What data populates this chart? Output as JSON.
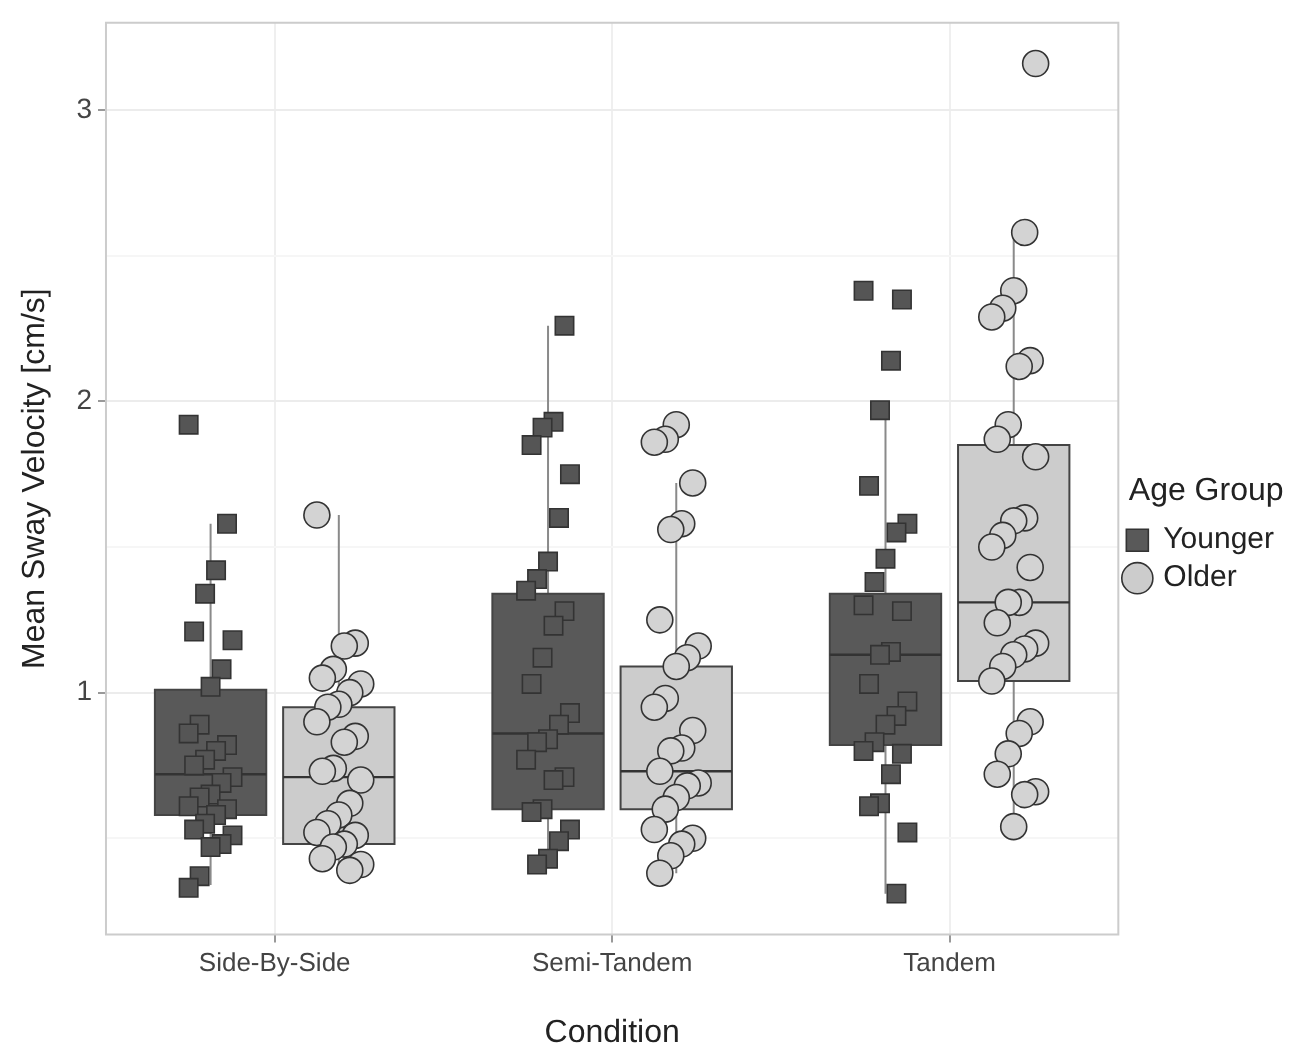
{
  "chart_data": {
    "type": "box",
    "categories": [
      "Side-By-Side",
      "Semi-Tandem",
      "Tandem"
    ],
    "xlabel": "Condition",
    "ylabel": "Mean Sway Velocity [cm/s]",
    "legend_title": "Age Group",
    "legend": "right",
    "grid": true,
    "ylim": [
      0.17,
      3.3
    ],
    "yticks": [
      {
        "value": 0.5,
        "label": null
      },
      1,
      {
        "value": 1.5,
        "label": null
      },
      2,
      {
        "value": 2.5,
        "label": null
      },
      3
    ],
    "series": [
      {
        "name": "Younger",
        "color": "#595959",
        "marker": "square",
        "boxes": [
          {
            "low": 0.34,
            "q1": 0.58,
            "median": 0.72,
            "q3": 1.01,
            "high": 1.58
          },
          {
            "low": 0.41,
            "q1": 0.6,
            "median": 0.86,
            "q3": 1.34,
            "high": 2.26
          },
          {
            "low": 0.31,
            "q1": 0.82,
            "median": 1.13,
            "q3": 1.34,
            "high": 1.97
          }
        ]
      },
      {
        "name": "Older",
        "color": "#cccccc",
        "marker": "circle",
        "boxes": [
          {
            "low": 0.39,
            "q1": 0.48,
            "median": 0.71,
            "q3": 0.95,
            "high": 1.61
          },
          {
            "low": 0.38,
            "q1": 0.6,
            "median": 0.73,
            "q3": 1.09,
            "high": 1.72
          },
          {
            "low": 0.54,
            "q1": 1.04,
            "median": 1.31,
            "q3": 1.85,
            "high": 2.58
          }
        ]
      },
      {
        "type": "scatter",
        "color": "#555555",
        "marker": "square",
        "x": [
          "Side-By-Side",
          "Side-By-Side",
          "Side-By-Side",
          "Side-By-Side",
          "Side-By-Side",
          "Side-By-Side",
          "Side-By-Side",
          "Side-By-Side",
          "Side-By-Side",
          "Side-By-Side",
          "Side-By-Side",
          "Side-By-Side",
          "Side-By-Side",
          "Side-By-Side",
          "Side-By-Side",
          "Side-By-Side",
          "Side-By-Side",
          "Side-By-Side",
          "Side-By-Side",
          "Side-By-Side",
          "Side-By-Side",
          "Side-By-Side",
          "Side-By-Side",
          "Side-By-Side",
          "Side-By-Side",
          "Side-By-Side",
          "Side-By-Side",
          "Side-By-Side",
          "Semi-Tandem",
          "Semi-Tandem",
          "Semi-Tandem",
          "Semi-Tandem",
          "Semi-Tandem",
          "Semi-Tandem",
          "Semi-Tandem",
          "Semi-Tandem",
          "Semi-Tandem",
          "Semi-Tandem",
          "Semi-Tandem",
          "Semi-Tandem",
          "Semi-Tandem",
          "Semi-Tandem",
          "Semi-Tandem",
          "Semi-Tandem",
          "Semi-Tandem",
          "Semi-Tandem",
          "Semi-Tandem",
          "Semi-Tandem",
          "Semi-Tandem",
          "Semi-Tandem",
          "Semi-Tandem",
          "Semi-Tandem",
          "Semi-Tandem",
          "Semi-Tandem",
          "Tandem",
          "Tandem",
          "Tandem",
          "Tandem",
          "Tandem",
          "Tandem",
          "Tandem",
          "Tandem",
          "Tandem",
          "Tandem",
          "Tandem",
          "Tandem",
          "Tandem",
          "Tandem",
          "Tandem",
          "Tandem",
          "Tandem",
          "Tandem",
          "Tandem",
          "Tandem",
          "Tandem",
          "Tandem",
          "Tandem",
          "Tandem",
          "Tandem"
        ],
        "values": [
          1.92,
          1.58,
          1.42,
          1.34,
          1.21,
          1.18,
          1.08,
          1.02,
          0.89,
          0.86,
          0.82,
          0.8,
          0.77,
          0.75,
          0.71,
          0.69,
          0.65,
          0.64,
          0.61,
          0.6,
          0.58,
          0.55,
          0.53,
          0.51,
          0.48,
          0.47,
          0.37,
          0.33,
          2.26,
          1.93,
          1.91,
          1.85,
          1.75,
          1.6,
          1.45,
          1.39,
          1.35,
          1.28,
          1.23,
          1.12,
          1.03,
          0.93,
          0.89,
          0.84,
          0.83,
          0.77,
          0.71,
          0.7,
          0.6,
          0.59,
          0.53,
          0.49,
          0.43,
          0.41,
          2.38,
          2.35,
          2.14,
          1.97,
          1.71,
          1.58,
          1.55,
          1.46,
          1.38,
          1.3,
          1.28,
          1.14,
          1.13,
          1.03,
          0.97,
          0.92,
          0.89,
          0.83,
          0.8,
          0.79,
          0.72,
          0.62,
          0.61,
          0.52,
          0.31
        ]
      },
      {
        "type": "scatter",
        "color": "#d3d3d3",
        "marker": "circle",
        "x": [
          "Side-By-Side",
          "Side-By-Side",
          "Side-By-Side",
          "Side-By-Side",
          "Side-By-Side",
          "Side-By-Side",
          "Side-By-Side",
          "Side-By-Side",
          "Side-By-Side",
          "Side-By-Side",
          "Side-By-Side",
          "Side-By-Side",
          "Side-By-Side",
          "Side-By-Side",
          "Side-By-Side",
          "Side-By-Side",
          "Side-By-Side",
          "Side-By-Side",
          "Side-By-Side",
          "Side-By-Side",
          "Side-By-Side",
          "Side-By-Side",
          "Side-By-Side",
          "Side-By-Side",
          "Side-By-Side",
          "Semi-Tandem",
          "Semi-Tandem",
          "Semi-Tandem",
          "Semi-Tandem",
          "Semi-Tandem",
          "Semi-Tandem",
          "Semi-Tandem",
          "Semi-Tandem",
          "Semi-Tandem",
          "Semi-Tandem",
          "Semi-Tandem",
          "Semi-Tandem",
          "Semi-Tandem",
          "Semi-Tandem",
          "Semi-Tandem",
          "Semi-Tandem",
          "Semi-Tandem",
          "Semi-Tandem",
          "Semi-Tandem",
          "Semi-Tandem",
          "Semi-Tandem",
          "Semi-Tandem",
          "Semi-Tandem",
          "Semi-Tandem",
          "Semi-Tandem",
          "Tandem",
          "Tandem",
          "Tandem",
          "Tandem",
          "Tandem",
          "Tandem",
          "Tandem",
          "Tandem",
          "Tandem",
          "Tandem",
          "Tandem",
          "Tandem",
          "Tandem",
          "Tandem",
          "Tandem",
          "Tandem",
          "Tandem",
          "Tandem",
          "Tandem",
          "Tandem",
          "Tandem",
          "Tandem",
          "Tandem",
          "Tandem",
          "Tandem",
          "Tandem",
          "Tandem",
          "Tandem",
          "Tandem",
          "Tandem"
        ],
        "values": [
          1.61,
          1.17,
          1.16,
          1.08,
          1.05,
          1.03,
          1.0,
          0.96,
          0.95,
          0.9,
          0.85,
          0.83,
          0.74,
          0.73,
          0.7,
          0.62,
          0.58,
          0.55,
          0.52,
          0.51,
          0.48,
          0.47,
          0.43,
          0.41,
          0.39,
          1.92,
          1.87,
          1.86,
          1.72,
          1.58,
          1.56,
          1.25,
          1.16,
          1.12,
          1.09,
          0.98,
          0.95,
          0.87,
          0.81,
          0.8,
          0.73,
          0.69,
          0.68,
          0.64,
          0.6,
          0.53,
          0.5,
          0.48,
          0.44,
          0.38,
          3.16,
          2.58,
          2.38,
          2.32,
          2.29,
          2.14,
          2.12,
          1.92,
          1.87,
          1.81,
          1.6,
          1.59,
          1.54,
          1.5,
          1.43,
          1.31,
          1.31,
          1.24,
          1.17,
          1.15,
          1.13,
          1.09,
          1.04,
          0.9,
          0.86,
          0.79,
          0.72,
          0.66,
          0.65,
          0.54
        ]
      }
    ]
  }
}
